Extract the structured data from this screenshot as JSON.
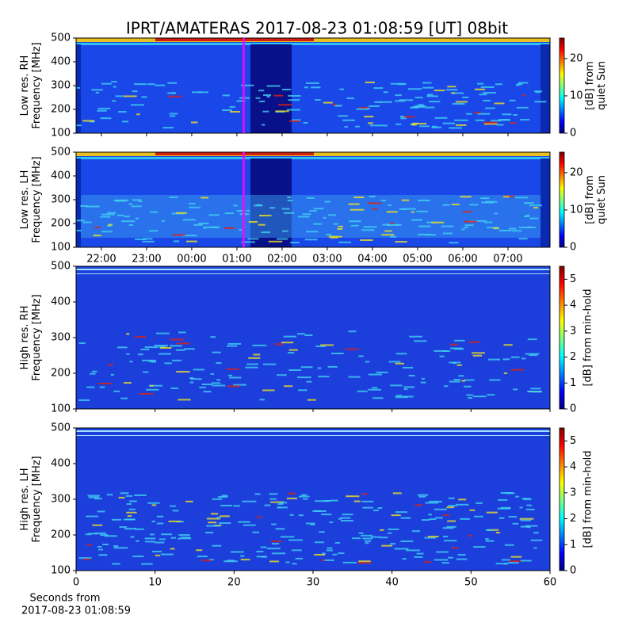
{
  "chart_data": [
    {
      "type": "heatmap",
      "title": "IPRT/AMATERAS 2017-08-23 01:08:59 [UT]   08bit",
      "ylabel": [
        "Low res. RH",
        "Frequency [MHz]"
      ],
      "ylim": [
        100,
        500
      ],
      "yticks": [
        100,
        200,
        300,
        400,
        500
      ],
      "xlim": [
        21.44,
        31.93
      ],
      "xticks": [
        22,
        23,
        24,
        25,
        26,
        27,
        28,
        29,
        30,
        31
      ],
      "xtick_labels": false,
      "marker": 25.15,
      "marker_color": "#ff00ff",
      "colorbar": {
        "label": [
          "[dB] from",
          "quiet Sun"
        ],
        "lim": [
          0,
          25.5
        ],
        "ticks": [
          0,
          10,
          20
        ],
        "colormap": "jet"
      }
    },
    {
      "type": "heatmap",
      "ylabel": [
        "Low res. LH",
        "Frequency [MHz]"
      ],
      "ylim": [
        100,
        500
      ],
      "yticks": [
        100,
        200,
        300,
        400,
        500
      ],
      "xlim": [
        21.44,
        31.93
      ],
      "xticks": [
        {
          "value": 22,
          "label": "22:00"
        },
        {
          "value": 23,
          "label": "23:00"
        },
        {
          "value": 24,
          "label": "00:00"
        },
        {
          "value": 25,
          "label": "01:00"
        },
        {
          "value": 26,
          "label": "02:00"
        },
        {
          "value": 27,
          "label": "03:00"
        },
        {
          "value": 28,
          "label": "04:00"
        },
        {
          "value": 29,
          "label": "05:00"
        },
        {
          "value": 30,
          "label": "06:00"
        },
        {
          "value": 31,
          "label": "07:00"
        }
      ],
      "xtick_labels": true,
      "marker": 25.15,
      "marker_color": "#ff00ff",
      "colorbar": {
        "label": [
          "[dB] from",
          "quiet Sun"
        ],
        "lim": [
          0,
          25.5
        ],
        "ticks": [
          0,
          10,
          20
        ],
        "colormap": "jet"
      }
    },
    {
      "type": "heatmap",
      "ylabel": [
        "High res. RH",
        "Frequency [MHz]"
      ],
      "ylim": [
        100,
        500
      ],
      "yticks": [
        100,
        200,
        300,
        400,
        500
      ],
      "xlim": [
        0,
        60
      ],
      "xticks": [
        0,
        10,
        20,
        30,
        40,
        50,
        60
      ],
      "xtick_labels": false,
      "colorbar": {
        "label": [
          "[dB] from min-hold"
        ],
        "lim": [
          0,
          5.5
        ],
        "ticks": [
          0,
          1,
          2,
          3,
          4,
          5
        ],
        "colormap": "jet"
      }
    },
    {
      "type": "heatmap",
      "ylabel": [
        "High res. LH",
        "Frequency [MHz]"
      ],
      "ylim": [
        100,
        500
      ],
      "yticks": [
        100,
        200,
        300,
        400,
        500
      ],
      "xlim": [
        0,
        60
      ],
      "xticks": [
        0,
        10,
        20,
        30,
        40,
        50,
        60
      ],
      "xtick_labels": true,
      "xlabel": [
        "Seconds from",
        "2017-08-23 01:08:59"
      ],
      "colorbar": {
        "label": [
          "[dB] from min-hold"
        ],
        "lim": [
          0,
          5.5
        ],
        "ticks": [
          0,
          1,
          2,
          3,
          4,
          5
        ],
        "colormap": "jet"
      }
    }
  ]
}
